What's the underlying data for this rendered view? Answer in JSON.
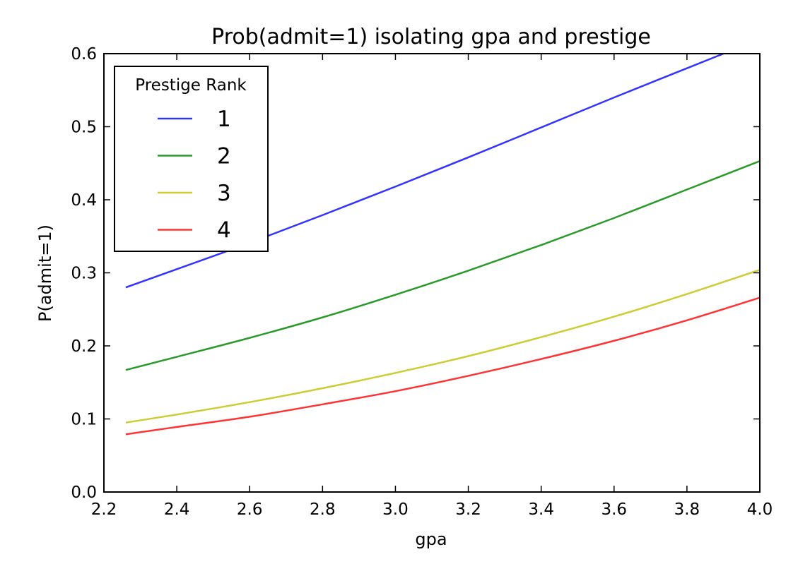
{
  "chart_data": {
    "type": "line",
    "title": "Prob(admit=1) isolating gpa and prestige",
    "xlabel": "gpa",
    "ylabel": "P(admit=1)",
    "xlim": [
      2.2,
      4.0
    ],
    "ylim": [
      0.0,
      0.6
    ],
    "xticks": [
      "2.2",
      "2.4",
      "2.6",
      "2.8",
      "3.0",
      "3.2",
      "3.4",
      "3.6",
      "3.8",
      "4.0"
    ],
    "yticks": [
      "0.0",
      "0.1",
      "0.2",
      "0.3",
      "0.4",
      "0.5",
      "0.6"
    ],
    "grid": false,
    "legend": {
      "title": "Prestige Rank",
      "placement": "upper-left"
    },
    "x": [
      2.26,
      2.4,
      2.6,
      2.8,
      3.0,
      3.2,
      3.4,
      3.6,
      3.8,
      4.0
    ],
    "series": [
      {
        "name": "1",
        "color": "#3333ff",
        "values": [
          0.28,
          0.305,
          0.341,
          0.379,
          0.418,
          0.458,
          0.499,
          0.54,
          0.58,
          0.62
        ]
      },
      {
        "name": "2",
        "color": "#2a9a2a",
        "values": [
          0.167,
          0.185,
          0.211,
          0.239,
          0.27,
          0.303,
          0.338,
          0.375,
          0.414,
          0.453
        ]
      },
      {
        "name": "3",
        "color": "#cccc33",
        "values": [
          0.095,
          0.106,
          0.123,
          0.142,
          0.163,
          0.186,
          0.212,
          0.24,
          0.271,
          0.304
        ]
      },
      {
        "name": "4",
        "color": "#ff3333",
        "values": [
          0.079,
          0.089,
          0.103,
          0.12,
          0.138,
          0.159,
          0.182,
          0.207,
          0.235,
          0.266
        ]
      }
    ]
  }
}
